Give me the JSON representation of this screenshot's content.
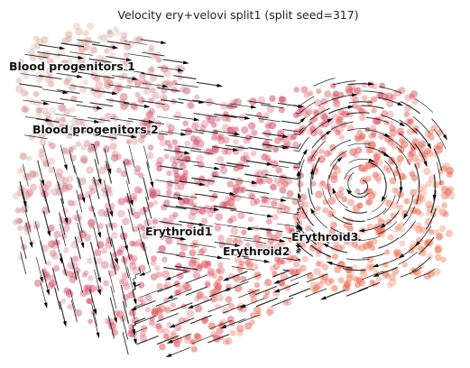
{
  "chart_data": {
    "type": "scatter",
    "title": "Velocity ery+velovi split1 (split seed=317)",
    "subtype": "umap scatter with velocity streamlines",
    "axes_visible": false,
    "grid": false,
    "legend": "none (cluster labels printed on plot)",
    "colors": {
      "progenitor": "#dcc2ae",
      "mid": "#d2486a",
      "late": "#f0764f",
      "streamline": "#000000"
    },
    "cluster_labels": [
      {
        "name": "Blood progenitors 1"
      },
      {
        "name": "Blood progenitors 2"
      },
      {
        "name": "Erythroid1"
      },
      {
        "name": "Erythroid2"
      },
      {
        "name": "Erythroid3"
      }
    ]
  }
}
